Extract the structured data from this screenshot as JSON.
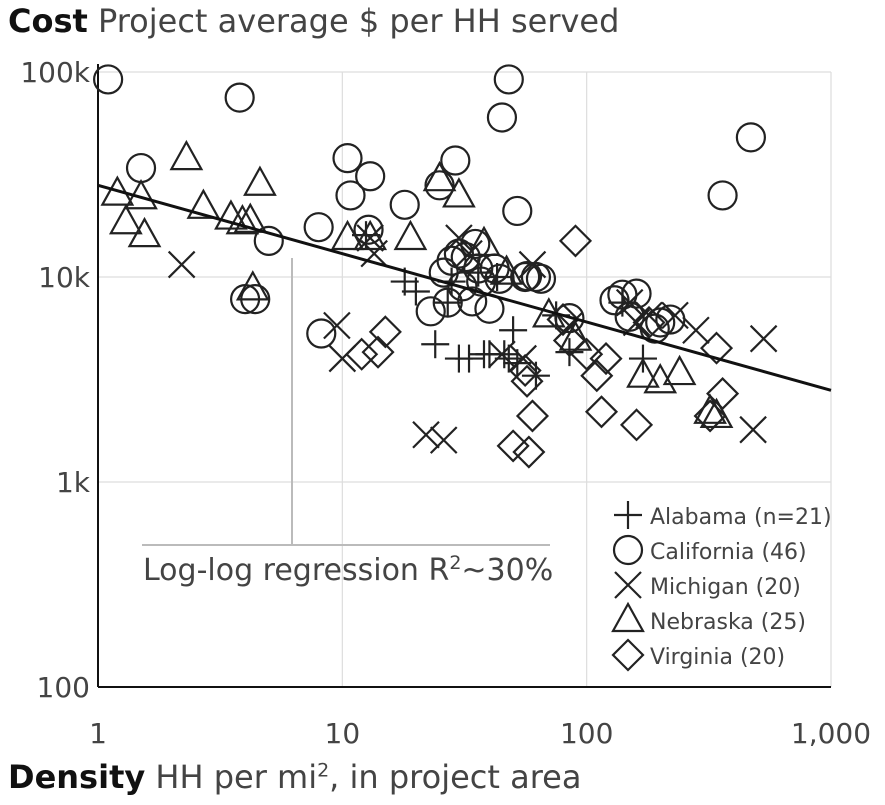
{
  "chart_data": {
    "type": "scatter",
    "title": "Cost",
    "subtitle": "Project average $ per HH served",
    "xlabel": "Density",
    "xlabel_sub": "HH per mi",
    "xlabel_sup": "2",
    "xlabel_rest": ", in project area",
    "xscale": "log",
    "yscale": "log",
    "xlim": [
      1,
      1000
    ],
    "ylim": [
      100,
      100000
    ],
    "xticks": [
      {
        "value": 1,
        "label": "1"
      },
      {
        "value": 10,
        "label": "10"
      },
      {
        "value": 100,
        "label": "100"
      },
      {
        "value": 1000,
        "label": "1,000"
      }
    ],
    "yticks": [
      {
        "value": 100,
        "label": "100"
      },
      {
        "value": 1000,
        "label": "1k"
      },
      {
        "value": 10000,
        "label": "10k"
      },
      {
        "value": 100000,
        "label": "100k"
      }
    ],
    "grid": true,
    "legend_position": "bottom-right",
    "regression": {
      "label": "Log-log regression R",
      "label_sup": "2",
      "label_rest": "~30%",
      "x": [
        1,
        1000
      ],
      "y": [
        28000,
        2800
      ]
    },
    "series": [
      {
        "name": "Alabama (n=21)",
        "marker": "plus",
        "points": [
          [
            12.5,
            16000
          ],
          [
            18,
            9500
          ],
          [
            20,
            8500
          ],
          [
            24,
            4700
          ],
          [
            27,
            7500
          ],
          [
            28,
            9500
          ],
          [
            30,
            4000
          ],
          [
            33,
            4000
          ],
          [
            36,
            10500
          ],
          [
            38,
            4200
          ],
          [
            40,
            4200
          ],
          [
            43,
            10000
          ],
          [
            46,
            4200
          ],
          [
            48,
            4000
          ],
          [
            50,
            5500
          ],
          [
            52,
            3800
          ],
          [
            62,
            3300
          ],
          [
            75,
            6500
          ],
          [
            85,
            4300
          ],
          [
            140,
            7500
          ],
          [
            170,
            4000
          ]
        ]
      },
      {
        "name": "California (46)",
        "marker": "circle",
        "points": [
          [
            1.1,
            92000
          ],
          [
            1.5,
            34000
          ],
          [
            3.8,
            75000
          ],
          [
            4.0,
            7800
          ],
          [
            4.4,
            7800
          ],
          [
            5.0,
            15000
          ],
          [
            8.0,
            17500
          ],
          [
            8.2,
            5300
          ],
          [
            10.5,
            38000
          ],
          [
            10.8,
            25000
          ],
          [
            12.8,
            17000
          ],
          [
            13.0,
            31000
          ],
          [
            18,
            22500
          ],
          [
            25,
            28000
          ],
          [
            26,
            10500
          ],
          [
            27,
            7500
          ],
          [
            28,
            12000
          ],
          [
            29,
            37000
          ],
          [
            30,
            13000
          ],
          [
            31,
            9000
          ],
          [
            32,
            12500
          ],
          [
            35,
            14500
          ],
          [
            37,
            9500
          ],
          [
            40,
            7000
          ],
          [
            42,
            11000
          ],
          [
            45,
            60000
          ],
          [
            48,
            92000
          ],
          [
            52,
            21000
          ],
          [
            56,
            10000
          ],
          [
            62,
            10000
          ],
          [
            140,
            8200
          ],
          [
            160,
            8300
          ],
          [
            200,
            6000
          ],
          [
            360,
            25000
          ],
          [
            470,
            48000
          ],
          [
            23,
            6800
          ],
          [
            34,
            7600
          ],
          [
            36,
            11000
          ],
          [
            44,
            9800
          ],
          [
            57,
            10100
          ],
          [
            65,
            9800
          ],
          [
            85,
            6300
          ],
          [
            130,
            7700
          ],
          [
            150,
            6400
          ],
          [
            190,
            5600
          ],
          [
            220,
            6200
          ]
        ]
      },
      {
        "name": "Michigan (20)",
        "marker": "x",
        "points": [
          [
            2.2,
            11500
          ],
          [
            9.5,
            5800
          ],
          [
            10,
            4000
          ],
          [
            13,
            15500
          ],
          [
            13.5,
            13000
          ],
          [
            22,
            1700
          ],
          [
            26,
            1600
          ],
          [
            30,
            15500
          ],
          [
            33,
            13000
          ],
          [
            45,
            4200
          ],
          [
            55,
            4000
          ],
          [
            60,
            11500
          ],
          [
            85,
            5800
          ],
          [
            150,
            7500
          ],
          [
            160,
            6000
          ],
          [
            180,
            6500
          ],
          [
            230,
            6500
          ],
          [
            280,
            5500
          ],
          [
            530,
            5000
          ],
          [
            480,
            1800
          ]
        ]
      },
      {
        "name": "Nebraska (25)",
        "marker": "triangle",
        "points": [
          [
            1.2,
            25500
          ],
          [
            1.3,
            18500
          ],
          [
            1.5,
            24500
          ],
          [
            1.55,
            16000
          ],
          [
            2.3,
            38000
          ],
          [
            2.7,
            22000
          ],
          [
            3.5,
            19500
          ],
          [
            3.9,
            18500
          ],
          [
            4.2,
            18800
          ],
          [
            4.3,
            8800
          ],
          [
            4.6,
            28500
          ],
          [
            10.5,
            15500
          ],
          [
            13,
            15500
          ],
          [
            19,
            15500
          ],
          [
            25,
            30000
          ],
          [
            30,
            25000
          ],
          [
            38,
            14500
          ],
          [
            47,
            10500
          ],
          [
            70,
            6500
          ],
          [
            90,
            5000
          ],
          [
            170,
            3300
          ],
          [
            200,
            3100
          ],
          [
            240,
            3400
          ],
          [
            320,
            2200
          ],
          [
            340,
            2100
          ]
        ]
      },
      {
        "name": "Virginia (20)",
        "marker": "diamond",
        "points": [
          [
            12,
            4200
          ],
          [
            14,
            4300
          ],
          [
            15,
            5400
          ],
          [
            50,
            1500
          ],
          [
            58,
            1400
          ],
          [
            56,
            3500
          ],
          [
            57,
            3100
          ],
          [
            60,
            2100
          ],
          [
            80,
            6200
          ],
          [
            85,
            4900
          ],
          [
            90,
            15000
          ],
          [
            100,
            4200
          ],
          [
            110,
            3300
          ],
          [
            120,
            4000
          ],
          [
            115,
            2200
          ],
          [
            160,
            1900
          ],
          [
            180,
            6000
          ],
          [
            320,
            2100
          ],
          [
            360,
            2700
          ],
          [
            340,
            4500
          ]
        ]
      }
    ]
  }
}
